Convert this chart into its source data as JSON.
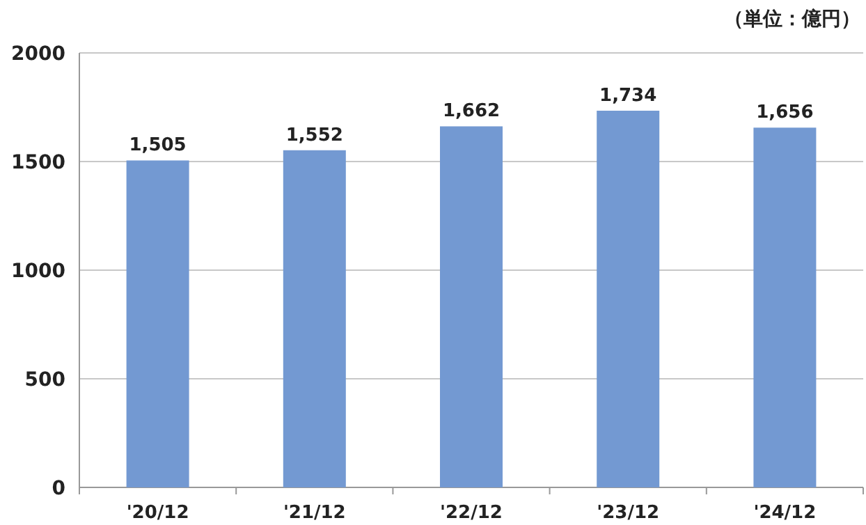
{
  "chart_data": {
    "type": "bar",
    "annotations": [
      "（単位：億円）"
    ],
    "categories": [
      "'20/12",
      "'21/12",
      "'22/12",
      "'23/12",
      "'24/12"
    ],
    "values": [
      1505,
      1552,
      1662,
      1734,
      1656
    ],
    "value_labels": [
      "1,505",
      "1,552",
      "1,662",
      "1,734",
      "1,656"
    ],
    "color": "#7399d2",
    "ylim": [
      0,
      2000
    ],
    "yticks": [
      0,
      500,
      1000,
      1500,
      2000
    ],
    "grid": "y"
  }
}
